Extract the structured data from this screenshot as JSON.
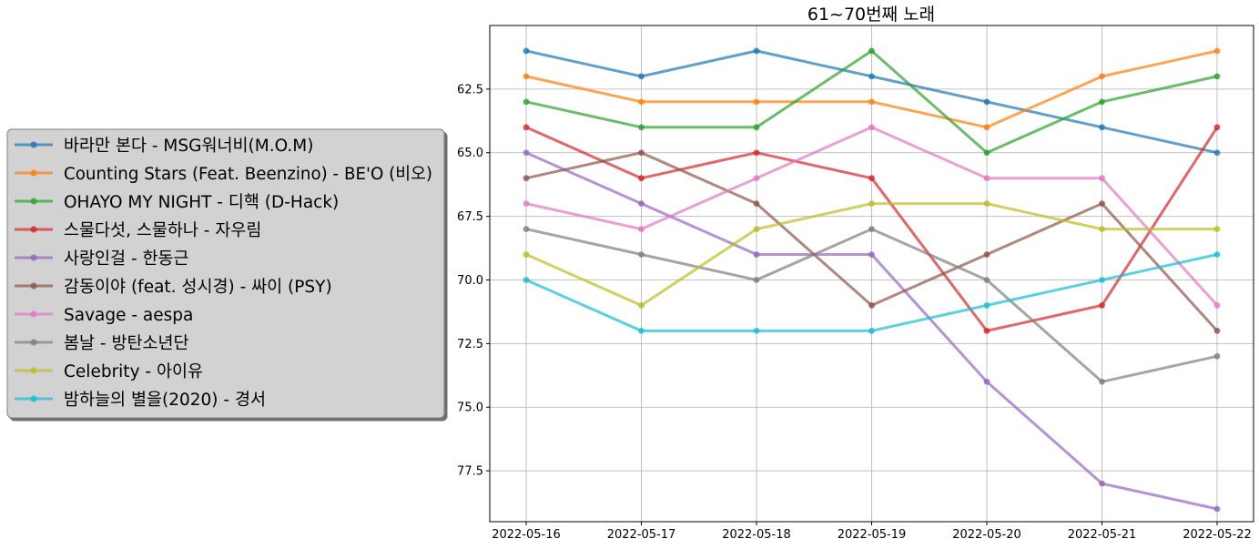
{
  "chart_data": {
    "type": "line",
    "title": "61~70번째 노래",
    "x": [
      "2022-05-16",
      "2022-05-17",
      "2022-05-18",
      "2022-05-19",
      "2022-05-20",
      "2022-05-21",
      "2022-05-22"
    ],
    "y_ticks": [
      "62.5",
      "65.0",
      "67.5",
      "70.0",
      "72.5",
      "75.0",
      "77.5"
    ],
    "y_tick_values": [
      62.5,
      65.0,
      67.5,
      70.0,
      72.5,
      75.0,
      77.5
    ],
    "ylim": [
      79.5,
      60.0
    ],
    "y_inverted": true,
    "grid": true,
    "legend_position": "left",
    "series": [
      {
        "name": "바라만 본다 - MSG워너비(M.O.M)",
        "color": "#1f77b4",
        "values": [
          61,
          62,
          61,
          62,
          63,
          64,
          65
        ]
      },
      {
        "name": "Counting Stars (Feat. Beenzino) - BE'O (비오)",
        "color": "#ff7f0e",
        "values": [
          62,
          63,
          63,
          63,
          64,
          62,
          61
        ]
      },
      {
        "name": "OHAYO MY NIGHT - 디핵 (D-Hack)",
        "color": "#2ca02c",
        "values": [
          63,
          64,
          64,
          61,
          65,
          63,
          62
        ]
      },
      {
        "name": "스물다섯, 스물하나 - 자우림",
        "color": "#d62728",
        "values": [
          64,
          66,
          65,
          66,
          72,
          71,
          64
        ]
      },
      {
        "name": "사랑인걸 - 한동근",
        "color": "#9467bd",
        "values": [
          65,
          67,
          69,
          69,
          74,
          78,
          79
        ]
      },
      {
        "name": "감동이야 (feat. 성시경) - 싸이 (PSY)",
        "color": "#8c564b",
        "values": [
          66,
          65,
          67,
          71,
          69,
          67,
          72
        ]
      },
      {
        "name": "Savage - aespa",
        "color": "#e377c2",
        "values": [
          67,
          68,
          66,
          64,
          66,
          66,
          71
        ]
      },
      {
        "name": "봄날 - 방탄소년단",
        "color": "#7f7f7f",
        "values": [
          68,
          69,
          70,
          68,
          70,
          74,
          73
        ]
      },
      {
        "name": "Celebrity - 아이유",
        "color": "#bcbd22",
        "values": [
          69,
          71,
          68,
          67,
          67,
          68,
          68
        ]
      },
      {
        "name": "밤하늘의 별을(2020) - 경서",
        "color": "#17becf",
        "values": [
          70,
          72,
          72,
          72,
          71,
          70,
          69
        ]
      }
    ]
  }
}
